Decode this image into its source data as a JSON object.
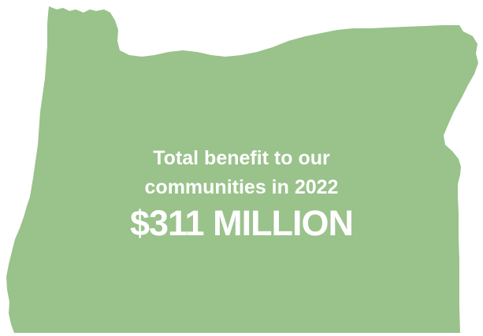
{
  "graphic": {
    "shape": "oregon-state-silhouette",
    "fill_color": "#9ac28b",
    "background_color": "#ffffff"
  },
  "caption": {
    "line1": "Total benefit to our",
    "line2": "communities in 2022",
    "amount": "$311 MILLION",
    "text_color": "#ffffff"
  }
}
